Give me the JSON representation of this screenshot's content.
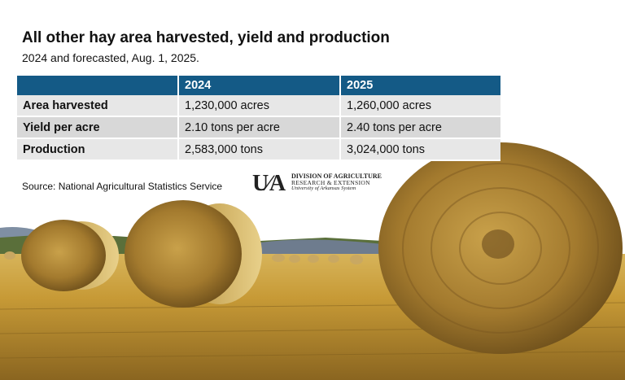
{
  "header": {
    "title": "All other hay area harvested, yield and production",
    "subtitle": "2024 and forecasted, Aug. 1, 2025."
  },
  "table": {
    "columns": [
      "",
      "2024",
      "2025"
    ],
    "rows": [
      {
        "label": "Area harvested",
        "y2024": "1,230,000 acres",
        "y2025": "1,260,000 acres"
      },
      {
        "label": "Yield per acre",
        "y2024": "2.10 tons per acre",
        "y2025": "2.40 tons per acre"
      },
      {
        "label": "Production",
        "y2024": "2,583,000 tons",
        "y2025": "3,024,000 tons"
      }
    ]
  },
  "source": "Source: National Agricultural Statistics Service",
  "logo": {
    "mark": "U∕A",
    "line1": "DIVISION OF AGRICULTURE",
    "line2": "RESEARCH & EXTENSION",
    "line3": "University of Arkansas System"
  },
  "colors": {
    "header_bg": "#145a86",
    "row_light": "#e7e7e7",
    "row_dark": "#d8d8d8",
    "field": "#c9a23a",
    "sky": "#ffffff"
  }
}
